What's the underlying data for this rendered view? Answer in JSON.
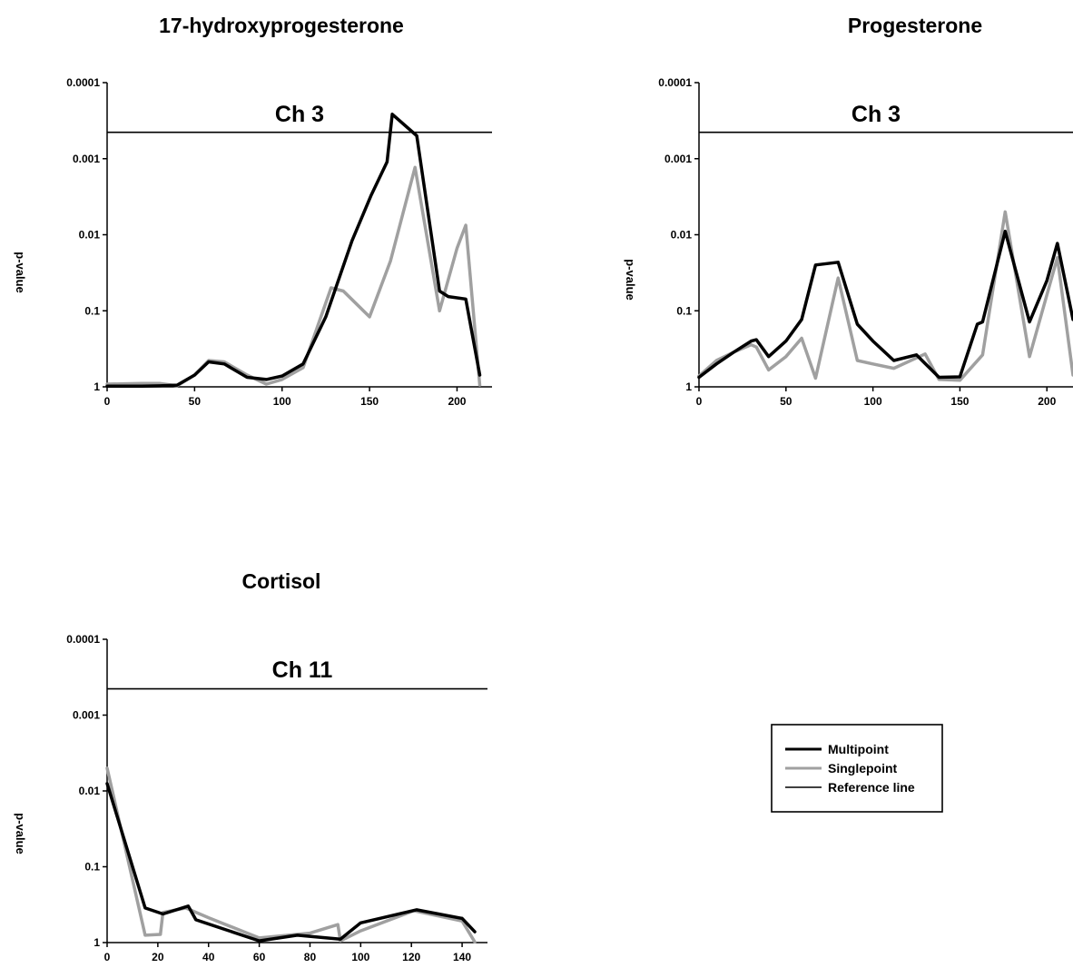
{
  "chart_data": [
    {
      "type": "line",
      "title": "17-hydroxyprogesterone",
      "annotation": "Ch 3",
      "xlabel": "",
      "ylabel": "p-value",
      "y_scale": "log",
      "y_reversed": true,
      "xlim": [
        0,
        220
      ],
      "ylim": [
        1,
        0.0001
      ],
      "x_ticks": [
        0,
        50,
        100,
        150,
        200
      ],
      "y_ticks": [
        1,
        0.1,
        0.01,
        0.001,
        0.0001
      ],
      "y_tick_labels": [
        "1",
        "0.1",
        "0.01",
        "0.001",
        "0.0001"
      ],
      "reference_line": 0.00045,
      "grid": false,
      "series": [
        {
          "name": "Multipoint",
          "color": "#000000",
          "x": [
            0,
            10,
            20,
            30,
            40,
            50,
            58,
            67,
            80,
            91,
            100,
            112,
            125,
            140,
            151,
            160,
            163,
            177,
            190,
            195,
            205,
            213
          ],
          "y": [
            0.98,
            0.98,
            0.98,
            0.97,
            0.95,
            0.7,
            0.47,
            0.5,
            0.75,
            0.8,
            0.72,
            0.5,
            0.12,
            0.012,
            0.003,
            0.0011,
            0.00026,
            0.0005,
            0.055,
            0.065,
            0.07,
            0.7
          ]
        },
        {
          "name": "Singlepoint",
          "color": "#a0a0a0",
          "x": [
            0,
            10,
            20,
            30,
            40,
            50,
            58,
            67,
            80,
            91,
            100,
            112,
            128,
            135,
            150,
            162,
            176,
            190,
            200,
            205,
            213
          ],
          "y": [
            0.92,
            0.91,
            0.9,
            0.9,
            0.97,
            0.7,
            0.45,
            0.47,
            0.7,
            0.92,
            0.8,
            0.56,
            0.05,
            0.055,
            0.12,
            0.022,
            0.0013,
            0.1,
            0.015,
            0.0075,
            0.95
          ]
        }
      ]
    },
    {
      "type": "line",
      "title": "Progesterone",
      "annotation": "Ch 3",
      "xlabel": "",
      "ylabel": "p-value",
      "y_scale": "log",
      "y_reversed": true,
      "xlim": [
        0,
        215
      ],
      "ylim": [
        1,
        0.0001
      ],
      "x_ticks": [
        0,
        50,
        100,
        150,
        200
      ],
      "y_ticks": [
        1,
        0.1,
        0.01,
        0.001,
        0.0001
      ],
      "y_tick_labels": [
        "1",
        "0.1",
        "0.01",
        "0.001",
        "0.0001"
      ],
      "reference_line": 0.00045,
      "grid": false,
      "series": [
        {
          "name": "Multipoint",
          "color": "#000000",
          "x": [
            0,
            10,
            20,
            30,
            33,
            40,
            50,
            59,
            67,
            80,
            91,
            100,
            112,
            125,
            138,
            150,
            160,
            163,
            176,
            190,
            200,
            206,
            215
          ],
          "y": [
            0.75,
            0.5,
            0.35,
            0.25,
            0.24,
            0.4,
            0.25,
            0.13,
            0.025,
            0.023,
            0.15,
            0.25,
            0.45,
            0.38,
            0.75,
            0.74,
            0.15,
            0.14,
            0.009,
            0.14,
            0.04,
            0.013,
            0.13
          ]
        },
        {
          "name": "Singlepoint",
          "color": "#a0a0a0",
          "x": [
            0,
            10,
            20,
            30,
            33,
            40,
            50,
            59,
            67,
            80,
            91,
            100,
            112,
            130,
            138,
            150,
            163,
            176,
            190,
            206,
            215
          ],
          "y": [
            0.72,
            0.45,
            0.35,
            0.28,
            0.3,
            0.6,
            0.4,
            0.23,
            0.77,
            0.037,
            0.45,
            0.5,
            0.57,
            0.37,
            0.8,
            0.82,
            0.38,
            0.005,
            0.4,
            0.02,
            0.7
          ]
        }
      ]
    },
    {
      "type": "line",
      "title": "Cortisol",
      "annotation": "Ch 11",
      "xlabel": "",
      "ylabel": "p-value",
      "y_scale": "log",
      "y_reversed": true,
      "xlim": [
        0,
        150
      ],
      "ylim": [
        1,
        0.0001
      ],
      "x_ticks": [
        0,
        20,
        40,
        60,
        80,
        100,
        120,
        140
      ],
      "x_tick_labels": [
        "0",
        "20",
        "40",
        "60",
        "80",
        "100",
        "120",
        "140"
      ],
      "y_ticks": [
        1,
        0.1,
        0.01,
        0.001,
        0.0001
      ],
      "y_tick_labels": [
        "1",
        "0.1",
        "0.01",
        "0.001",
        "0.0001"
      ],
      "reference_line": 0.00045,
      "grid": false,
      "series": [
        {
          "name": "Multipoint",
          "color": "#000000",
          "x": [
            0,
            15,
            22,
            32,
            35,
            60,
            75,
            92,
            100,
            122,
            140,
            145
          ],
          "y": [
            0.008,
            0.35,
            0.42,
            0.33,
            0.5,
            0.95,
            0.8,
            0.9,
            0.55,
            0.37,
            0.48,
            0.72
          ],
          "note": ""
        },
        {
          "name": "Singlepoint",
          "color": "#a0a0a0",
          "x": [
            0,
            15,
            21,
            22,
            31,
            40,
            60,
            80,
            91,
            92,
            100,
            121,
            140,
            145
          ],
          "y": [
            0.005,
            0.8,
            0.78,
            0.4,
            0.35,
            0.47,
            0.87,
            0.75,
            0.58,
            0.95,
            0.7,
            0.38,
            0.52,
            0.98
          ]
        }
      ]
    }
  ],
  "legend": {
    "items": [
      {
        "label": "Multipoint",
        "color": "#000000",
        "width": 3
      },
      {
        "label": "Singlepoint",
        "color": "#a0a0a0",
        "width": 3
      },
      {
        "label": "Reference line",
        "color": "#000000",
        "width": 1.5
      }
    ]
  },
  "colors": {
    "reference_line": "#000000",
    "axis": "#000000"
  }
}
